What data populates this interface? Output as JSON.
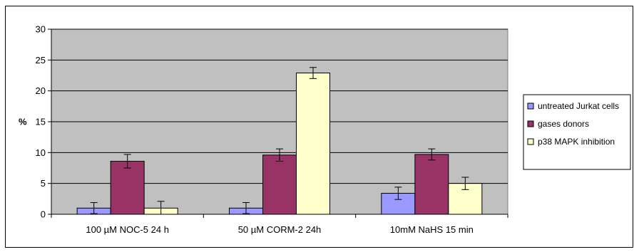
{
  "chart_data": {
    "type": "bar",
    "title": "",
    "xlabel": "",
    "ylabel": "%",
    "ylim": [
      0,
      30
    ],
    "yticks": [
      "0",
      "5",
      "10",
      "15",
      "20",
      "25",
      "30"
    ],
    "grid": true,
    "legend_position": "right",
    "categories": [
      "100 µM NOC-5 24 h",
      "50 µM CORM-2 24h",
      "10mM NaHS 15 min"
    ],
    "series": [
      {
        "name": "untreated Jurkat cells",
        "color": "#9999ff",
        "values": [
          1.0,
          1.0,
          3.4
        ],
        "errors": [
          0.9,
          0.9,
          1.0
        ]
      },
      {
        "name": "gases donors",
        "color": "#993366",
        "values": [
          8.6,
          9.6,
          9.7
        ],
        "errors": [
          1.1,
          1.0,
          0.9
        ]
      },
      {
        "name": "p38 MAPK inhibition",
        "color": "#ffffcc",
        "values": [
          1.0,
          22.9,
          5.0
        ],
        "errors": [
          1.1,
          0.9,
          1.0
        ]
      }
    ],
    "plot_background": "#c0c0c0"
  }
}
